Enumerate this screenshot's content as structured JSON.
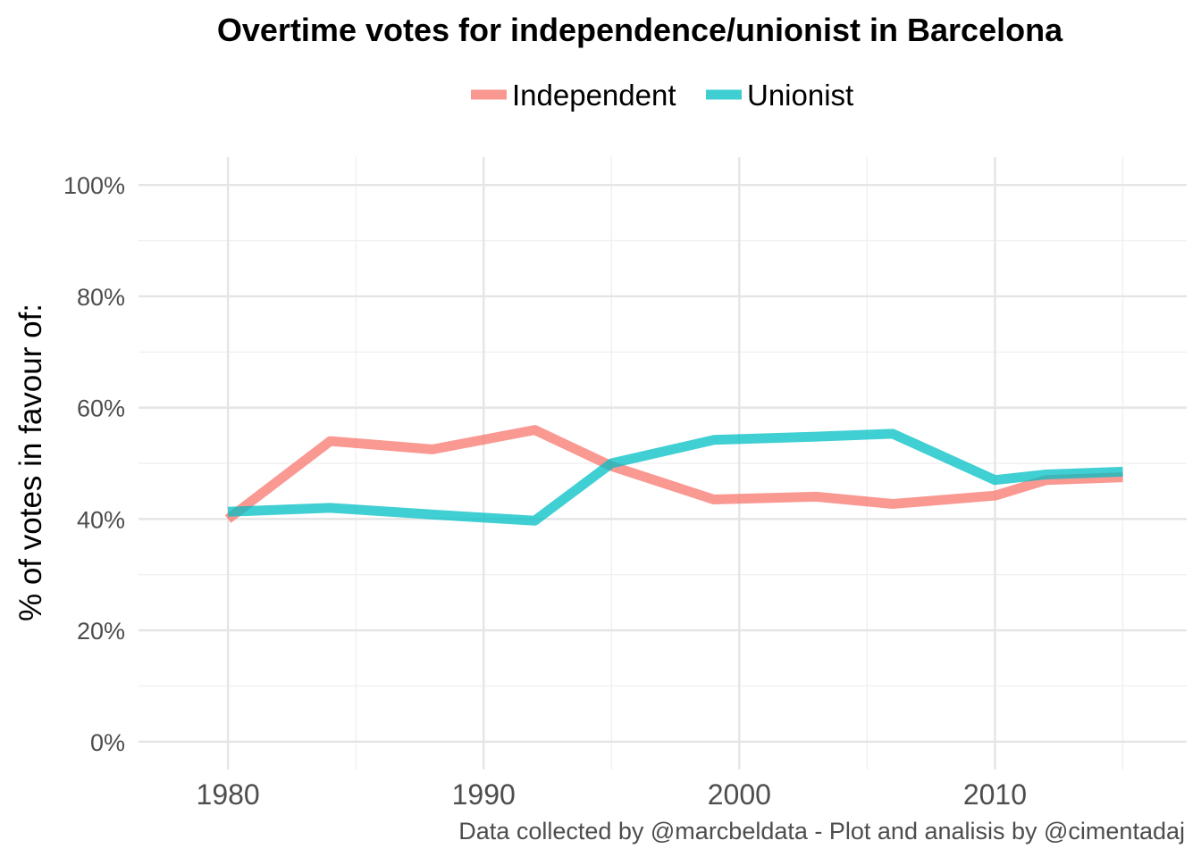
{
  "chart_data": {
    "type": "line",
    "title": "Overtime votes for independence/unionist in Barcelona",
    "xlabel": "",
    "ylabel": "% of votes in favour of:",
    "caption": "Data collected by @marcbeldata - Plot and analisis by @cimentadaj",
    "x": [
      1980,
      1984,
      1988,
      1992,
      1995,
      1999,
      2003,
      2006,
      2010,
      2012,
      2015
    ],
    "series": [
      {
        "name": "Independent",
        "color": "#F8766D",
        "values": [
          40.0,
          54.0,
          52.5,
          56.0,
          49.5,
          43.5,
          44.0,
          42.7,
          44.2,
          47.0,
          47.5
        ]
      },
      {
        "name": "Unionist",
        "color": "#00BFC4",
        "values": [
          41.3,
          42.0,
          40.8,
          39.7,
          50.0,
          54.2,
          54.8,
          55.3,
          47.0,
          48.0,
          48.5
        ]
      }
    ],
    "xlim": [
      1976.5,
      2017.5
    ],
    "ylim": [
      -5,
      105
    ],
    "x_ticks": [
      {
        "value": 1980,
        "label": "1980"
      },
      {
        "value": 1990,
        "label": "1990"
      },
      {
        "value": 2000,
        "label": "2000"
      },
      {
        "value": 2010,
        "label": "2010"
      }
    ],
    "x_minor_ticks": [
      1985,
      1995,
      2005,
      2015
    ],
    "y_ticks": [
      {
        "value": 0,
        "label": "0%"
      },
      {
        "value": 20,
        "label": "20%"
      },
      {
        "value": 40,
        "label": "40%"
      },
      {
        "value": 60,
        "label": "60%"
      },
      {
        "value": 80,
        "label": "80%"
      },
      {
        "value": 100,
        "label": "100%"
      }
    ],
    "y_minor_ticks": [
      10,
      30,
      50,
      70,
      90
    ],
    "grid": true,
    "legend_position": "top"
  }
}
